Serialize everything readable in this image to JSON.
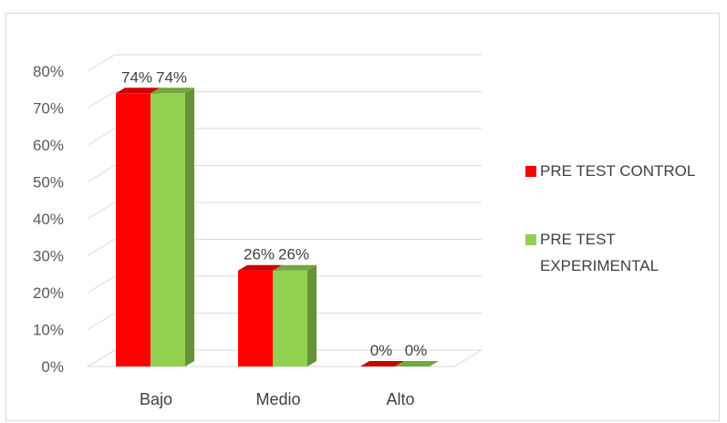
{
  "chart_data": {
    "type": "bar",
    "categories": [
      "Bajo",
      "Medio",
      "Alto"
    ],
    "series": [
      {
        "name": "PRE TEST CONTROL",
        "values": [
          74,
          26,
          0
        ],
        "labels": [
          "74%",
          "26%",
          "0%"
        ],
        "color": "#ff0000"
      },
      {
        "name": "PRE TEST EXPERIMENTAL",
        "values": [
          74,
          26,
          0
        ],
        "labels": [
          "74%",
          "26%",
          "0%"
        ],
        "color": "#92d050"
      }
    ],
    "y_ticks": [
      "0%",
      "10%",
      "20%",
      "30%",
      "40%",
      "50%",
      "60%",
      "70%",
      "80%"
    ],
    "ylim": [
      0,
      80
    ],
    "grid": true,
    "three_d": true,
    "legend_position": "right"
  }
}
